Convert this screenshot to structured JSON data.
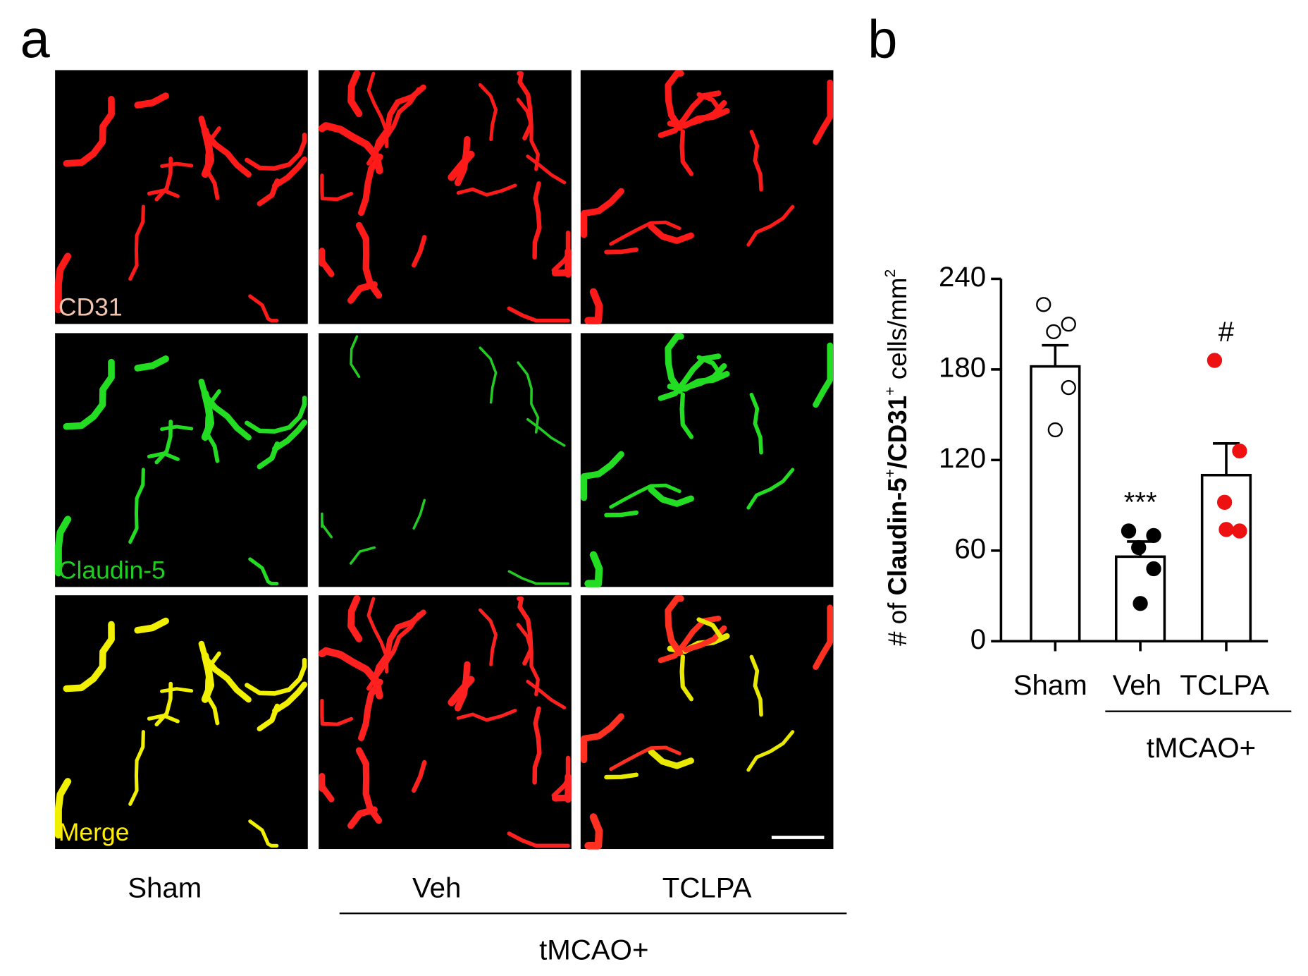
{
  "panel_a": {
    "letter": "a",
    "rows": [
      "CD31",
      "Claudin-5",
      "Merge"
    ],
    "row_colors": [
      "#f2c4ae",
      "#22cc22",
      "#ffee00"
    ],
    "columns": [
      "Sham",
      "Veh",
      "TCLPA"
    ],
    "group": "tMCAO+"
  },
  "chart_data": {
    "type": "bar",
    "panel_letter": "b",
    "y_label": [
      "# of ",
      "Claudin-5",
      "+",
      "/CD31",
      "+",
      " cells/mm",
      "2"
    ],
    "categories": [
      "Sham",
      "Veh",
      "TCLPA"
    ],
    "values": [
      182,
      56,
      110
    ],
    "errors": [
      14,
      10,
      21
    ],
    "points": [
      [
        223,
        210,
        205,
        168,
        140
      ],
      [
        73,
        70,
        62,
        48,
        25
      ],
      [
        186,
        126,
        92,
        73,
        74
      ]
    ],
    "point_fill": [
      "#ffffff",
      "#000000",
      "#ee1111"
    ],
    "point_stroke": [
      "#000000",
      "#000000",
      "#ee1111"
    ],
    "annotations": [
      null,
      "***",
      "#"
    ],
    "group": "tMCAO+",
    "color": "#ffffff",
    "ylim": [
      0,
      240
    ],
    "yticks": [
      0,
      60,
      120,
      180,
      240
    ]
  }
}
